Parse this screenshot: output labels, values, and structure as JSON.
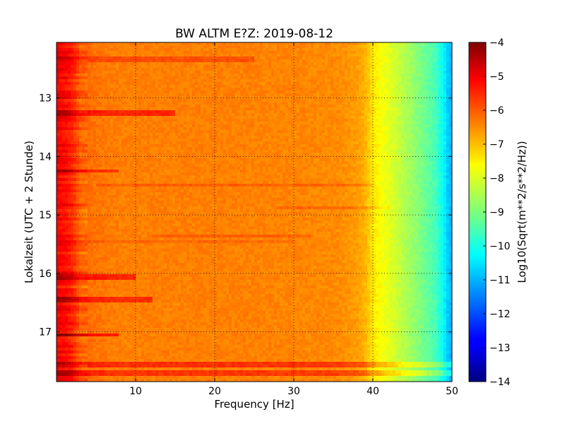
{
  "chart_data": {
    "type": "heatmap",
    "title": "BW ALTM E?Z: 2019-08-12",
    "xlabel": "Frequency [Hz]",
    "ylabel": "Lokalzeit (UTC + 2 Stunde)",
    "colorbar_label": "Log10(Sqrt(m**2/s**2/Hz))",
    "colormap": "jet",
    "grid": true,
    "xlim": [
      0,
      50
    ],
    "ylim_hours": [
      12.05,
      17.85
    ],
    "y_inverted": true,
    "clim": [
      -14,
      -4
    ],
    "x_ticks": [
      10,
      20,
      30,
      40,
      50
    ],
    "x_tick_labels": [
      "10",
      "20",
      "30",
      "40",
      "50"
    ],
    "y_ticks": [
      13,
      14,
      15,
      16,
      17
    ],
    "y_tick_labels": [
      "13",
      "14",
      "15",
      "16",
      "17"
    ],
    "colorbar_ticks": [
      -4,
      -5,
      -6,
      -7,
      -8,
      -9,
      -10,
      -11,
      -12,
      -13,
      -14
    ],
    "colorbar_tick_labels": [
      "−4",
      "−5",
      "−6",
      "−7",
      "−8",
      "−9",
      "−10",
      "−11",
      "−12",
      "−13",
      "−14"
    ],
    "spectrum_profile": {
      "frequency_hz": [
        0,
        1,
        2,
        3,
        5,
        8,
        10,
        20,
        30,
        35,
        37,
        38,
        39,
        40,
        41,
        42,
        44,
        46,
        48,
        49,
        49.5,
        50
      ],
      "log_amplitude": [
        -5.2,
        -5.3,
        -5.6,
        -6.2,
        -6.4,
        -6.5,
        -6.5,
        -6.5,
        -6.55,
        -6.6,
        -6.7,
        -6.8,
        -7.0,
        -7.5,
        -7.8,
        -8.0,
        -8.5,
        -9.0,
        -9.6,
        -10.3,
        -10.8,
        -11.0
      ]
    },
    "horizontal_features": [
      {
        "hour": 12.35,
        "f_start": 0,
        "f_end": 25,
        "delta": 0.5
      },
      {
        "hour": 13.27,
        "f_start": 0,
        "f_end": 15,
        "delta": 0.9
      },
      {
        "hour": 14.25,
        "f_start": 0,
        "f_end": 8,
        "delta": 0.7
      },
      {
        "hour": 14.5,
        "f_start": 5,
        "f_end": 40,
        "delta": 0.35
      },
      {
        "hour": 14.87,
        "f_start": 28,
        "f_end": 42,
        "delta": 0.35
      },
      {
        "hour": 15.35,
        "f_start": 12,
        "f_end": 32,
        "delta": 0.35
      },
      {
        "hour": 15.45,
        "f_start": 0,
        "f_end": 30,
        "delta": 0.25
      },
      {
        "hour": 16.05,
        "f_start": 0,
        "f_end": 10,
        "delta": 0.9
      },
      {
        "hour": 16.45,
        "f_start": 0,
        "f_end": 12,
        "delta": 0.8
      },
      {
        "hour": 17.05,
        "f_start": 0,
        "f_end": 8,
        "delta": 1.0
      },
      {
        "hour": 17.55,
        "f_start": 0,
        "f_end": 50,
        "delta": 0.8
      },
      {
        "hour": 17.7,
        "f_start": 0,
        "f_end": 50,
        "delta": 0.75
      }
    ]
  }
}
